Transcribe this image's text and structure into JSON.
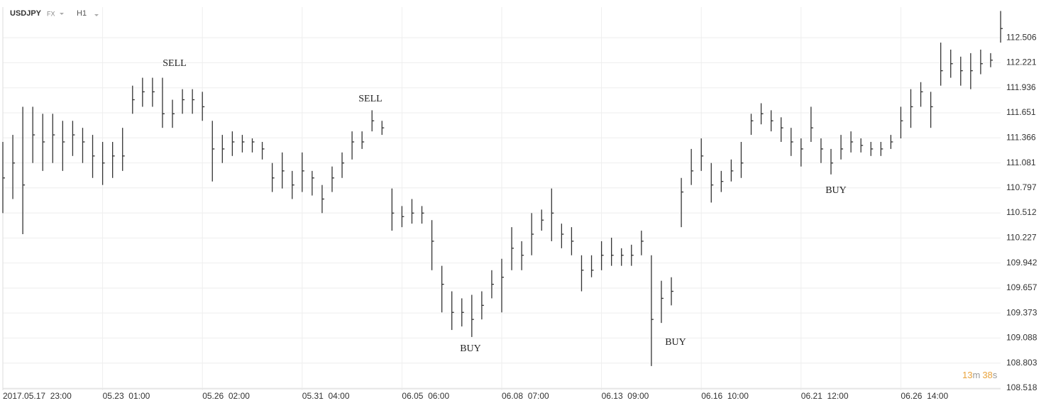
{
  "header": {
    "symbol": "USDJPY",
    "market": "FX",
    "timeframe": "H1"
  },
  "timer": {
    "minutes": "13",
    "minutes_unit": "m",
    "seconds": "38",
    "seconds_unit": "s"
  },
  "chart_data": {
    "type": "ohlc",
    "color": "#333333",
    "grid": true,
    "xlim": [
      0,
      100
    ],
    "xticks": [
      {
        "value": 0,
        "label": "2017.05.17  23:00"
      },
      {
        "value": 10,
        "label": "05.23  01:00"
      },
      {
        "value": 20,
        "label": "05.26  02:00"
      },
      {
        "value": 30,
        "label": "05.31  04:00"
      },
      {
        "value": 40,
        "label": "06.05  06:00"
      },
      {
        "value": 50,
        "label": "06.08  07:00"
      },
      {
        "value": 60,
        "label": "06.13  09:00"
      },
      {
        "value": 70,
        "label": "06.16  10:00"
      },
      {
        "value": 80,
        "label": "06.21  12:00"
      },
      {
        "value": 90,
        "label": "06.26  14:00"
      }
    ],
    "ylim": [
      108.494,
      112.854
    ],
    "yticks": [
      108.518,
      108.803,
      109.088,
      109.373,
      109.657,
      109.942,
      110.227,
      110.512,
      110.797,
      111.081,
      111.366,
      111.651,
      111.936,
      112.221,
      112.506
    ],
    "high": [
      111.32,
      111.4,
      111.72,
      111.72,
      111.64,
      111.64,
      111.56,
      111.56,
      111.48,
      111.4,
      111.32,
      111.32,
      111.48,
      111.96,
      112.05,
      112.05,
      112.05,
      111.8,
      111.92,
      111.92,
      111.89,
      111.56,
      111.4,
      111.44,
      111.4,
      111.36,
      111.32,
      111.08,
      111.2,
      110.99,
      111.2,
      110.99,
      110.83,
      111.04,
      111.2,
      111.44,
      111.44,
      111.68,
      111.56,
      110.79,
      110.59,
      110.67,
      110.59,
      110.43,
      109.91,
      109.62,
      109.54,
      109.58,
      109.62,
      109.86,
      109.99,
      110.35,
      110.19,
      110.51,
      110.55,
      110.79,
      110.39,
      110.35,
      110.03,
      110.03,
      110.19,
      110.23,
      110.11,
      110.15,
      110.31,
      110.03,
      109.74,
      109.78,
      110.91,
      111.24,
      111.36,
      111.08,
      110.99,
      111.12,
      111.32,
      111.64,
      111.76,
      111.68,
      111.6,
      111.48,
      111.36,
      111.72,
      111.36,
      111.24,
      111.4,
      111.44,
      111.36,
      111.32,
      111.32,
      111.4,
      111.72,
      111.92,
      112.0,
      111.89,
      112.45,
      112.37,
      112.29,
      112.33,
      112.37,
      112.33,
      112.81
    ],
    "low": [
      110.51,
      110.67,
      110.27,
      111.08,
      110.99,
      111.08,
      110.99,
      111.16,
      111.08,
      110.91,
      110.83,
      110.91,
      110.99,
      111.64,
      111.72,
      111.72,
      111.48,
      111.48,
      111.64,
      111.64,
      111.56,
      110.87,
      111.08,
      111.16,
      111.2,
      111.2,
      111.12,
      110.75,
      110.79,
      110.67,
      110.75,
      110.71,
      110.51,
      110.75,
      110.91,
      111.12,
      111.24,
      111.44,
      111.4,
      110.31,
      110.35,
      110.39,
      110.39,
      109.86,
      109.38,
      109.18,
      109.22,
      109.1,
      109.3,
      109.54,
      109.38,
      109.86,
      109.86,
      110.03,
      110.31,
      110.19,
      110.11,
      110.03,
      109.62,
      109.78,
      109.86,
      109.91,
      109.91,
      109.91,
      110.03,
      108.77,
      109.26,
      109.46,
      110.35,
      110.83,
      110.99,
      110.63,
      110.75,
      110.87,
      110.91,
      111.4,
      111.52,
      111.44,
      111.32,
      111.16,
      111.04,
      111.32,
      111.08,
      110.95,
      111.12,
      111.2,
      111.2,
      111.16,
      111.16,
      111.24,
      111.36,
      111.48,
      111.72,
      111.48,
      111.96,
      112.05,
      111.96,
      111.92,
      112.09,
      112.17,
      112.45
    ],
    "close": [
      110.91,
      111.08,
      110.83,
      111.4,
      111.32,
      111.4,
      111.32,
      111.4,
      111.32,
      111.16,
      111.08,
      111.16,
      111.16,
      111.8,
      111.89,
      111.89,
      111.64,
      111.64,
      111.8,
      111.8,
      111.72,
      111.24,
      111.24,
      111.32,
      111.32,
      111.32,
      111.24,
      110.91,
      110.99,
      110.83,
      110.99,
      110.91,
      110.67,
      110.91,
      111.08,
      111.32,
      111.32,
      111.56,
      111.48,
      110.51,
      110.47,
      110.51,
      110.51,
      110.19,
      109.7,
      109.38,
      109.38,
      109.3,
      109.46,
      109.7,
      109.78,
      110.11,
      110.03,
      110.27,
      110.43,
      110.51,
      110.27,
      110.19,
      109.86,
      109.86,
      110.03,
      110.03,
      110.03,
      110.03,
      110.19,
      109.3,
      109.54,
      109.62,
      110.75,
      110.99,
      111.16,
      110.83,
      110.87,
      110.99,
      111.08,
      111.56,
      111.64,
      111.56,
      111.48,
      111.32,
      111.24,
      111.48,
      111.24,
      111.08,
      111.24,
      111.32,
      111.28,
      111.24,
      111.24,
      111.32,
      111.56,
      111.72,
      111.89,
      111.72,
      112.13,
      112.21,
      112.13,
      112.13,
      112.21,
      112.25,
      112.61
    ],
    "annotations": [
      "SELL",
      "SELL",
      "BUY",
      "BUY",
      "BUY"
    ]
  }
}
